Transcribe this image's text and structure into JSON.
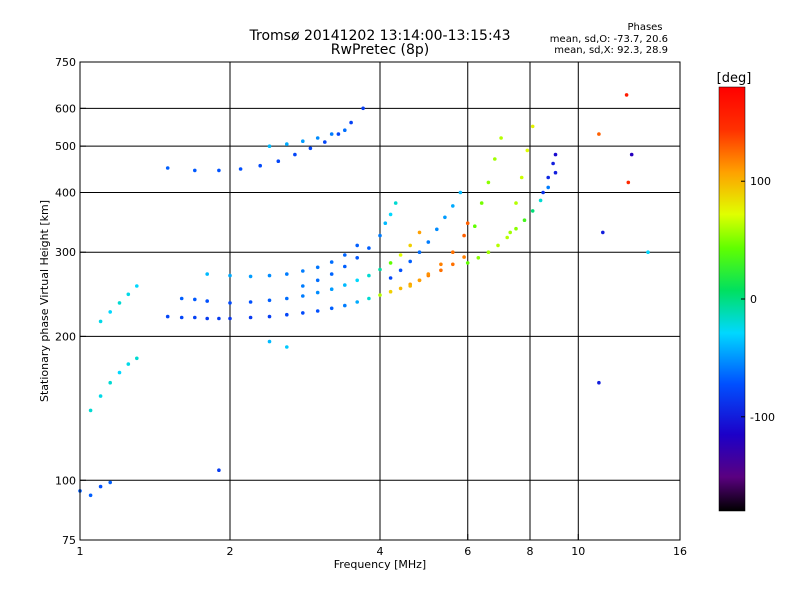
{
  "chart_data": {
    "type": "scatter",
    "title": "Tromsø 20141202 13:14:00-13:15:43",
    "subtitle": "RwPretec (8p)",
    "xlabel": "Frequency [MHz]",
    "ylabel": "Stationary phase Virtual Height [km]",
    "xscale": "log",
    "yscale": "log",
    "xlim": [
      1,
      16
    ],
    "ylim": [
      75,
      750
    ],
    "grid": true,
    "x_ticks": [
      1,
      2,
      4,
      6,
      8,
      10,
      16
    ],
    "y_ticks": [
      75,
      100,
      200,
      300,
      400,
      500,
      600,
      750
    ],
    "legend": {
      "heading": "Phases",
      "lines": [
        "mean, sd,O:  -73.7, 20.6",
        "mean, sd,X:   92.3, 28.9"
      ]
    },
    "colorbar": {
      "label": "[deg]",
      "range": [
        -180,
        180
      ],
      "ticks": [
        100,
        0,
        -100
      ]
    },
    "series": [
      {
        "x": [
          1.0,
          1.05,
          1.1,
          1.15
        ],
        "y": [
          95,
          93,
          97,
          99
        ],
        "phase": [
          -70,
          -70,
          -75,
          -70
        ]
      },
      {
        "x": [
          1.05,
          1.1,
          1.15,
          1.2,
          1.25,
          1.3,
          1.1,
          1.15,
          1.2,
          1.25,
          1.3
        ],
        "y": [
          140,
          150,
          160,
          168,
          175,
          180,
          215,
          225,
          235,
          245,
          255
        ],
        "phase": [
          -20,
          -25,
          -20,
          -30,
          -25,
          -20,
          -25,
          -30,
          -20,
          -25,
          -30
        ]
      },
      {
        "x": [
          1.5,
          1.6,
          1.7,
          1.8,
          1.9,
          2.0,
          2.2,
          2.4,
          2.6,
          2.8,
          3.0,
          3.2,
          3.4,
          3.6,
          3.8,
          4.0,
          4.2,
          4.4,
          4.6,
          4.8,
          5.0,
          5.3,
          5.6,
          5.9
        ],
        "y": [
          220,
          219,
          219,
          218,
          218,
          218,
          219,
          220,
          222,
          224,
          226,
          229,
          232,
          236,
          240,
          244,
          248,
          252,
          257,
          262,
          268,
          275,
          283,
          293
        ],
        "phase": [
          -80,
          -80,
          -82,
          -85,
          -85,
          -88,
          -86,
          -84,
          -80,
          -78,
          -75,
          -70,
          -60,
          -45,
          -20,
          60,
          90,
          100,
          110,
          115,
          120,
          125,
          125,
          120
        ]
      },
      {
        "x": [
          1.6,
          1.7,
          1.8,
          2.0,
          2.2,
          2.4,
          2.6,
          2.8,
          3.0,
          3.2,
          3.4,
          3.6,
          3.8,
          4.0,
          4.2,
          4.4,
          4.6,
          4.8
        ],
        "y": [
          240,
          239,
          237,
          235,
          236,
          238,
          240,
          243,
          247,
          251,
          256,
          262,
          268,
          276,
          285,
          296,
          310,
          330
        ],
        "phase": [
          -70,
          -72,
          -75,
          -78,
          -75,
          -70,
          -65,
          -60,
          -55,
          -50,
          -40,
          -30,
          -20,
          -10,
          40,
          70,
          90,
          110
        ]
      },
      {
        "x": [
          1.8,
          2.0,
          2.2,
          2.4,
          2.6,
          2.8,
          3.0,
          3.2,
          3.4,
          3.6
        ],
        "y": [
          270,
          268,
          267,
          268,
          270,
          274,
          279,
          286,
          296,
          310
        ],
        "phase": [
          -40,
          -45,
          -50,
          -55,
          -60,
          -60,
          -62,
          -65,
          -68,
          -70
        ]
      },
      {
        "x": [
          2.8,
          3.0,
          3.2,
          3.4,
          3.6,
          3.8,
          4.0,
          4.1,
          4.2,
          4.3
        ],
        "y": [
          255,
          262,
          270,
          280,
          292,
          306,
          325,
          345,
          360,
          380
        ],
        "phase": [
          -60,
          -65,
          -68,
          -70,
          -72,
          -70,
          -60,
          -40,
          -30,
          -20
        ]
      },
      {
        "x": [
          4.2,
          4.4,
          4.6,
          4.8,
          5.0,
          5.2,
          5.4,
          5.6,
          5.8
        ],
        "y": [
          265,
          275,
          287,
          300,
          315,
          335,
          355,
          375,
          400
        ],
        "phase": [
          -80,
          -75,
          -70,
          -65,
          -60,
          -55,
          -50,
          -45,
          -40
        ]
      },
      {
        "x": [
          4.6,
          4.8,
          5.0,
          5.3,
          5.6,
          5.9,
          6.0
        ],
        "y": [
          255,
          262,
          270,
          283,
          300,
          325,
          345
        ],
        "phase": [
          100,
          110,
          115,
          120,
          125,
          130,
          130
        ]
      },
      {
        "x": [
          6.0,
          6.3,
          6.6,
          6.9,
          7.2,
          7.5,
          7.8,
          8.1,
          8.4,
          8.7,
          9.0
        ],
        "y": [
          285,
          292,
          300,
          310,
          322,
          336,
          350,
          366,
          385,
          410,
          440
        ],
        "phase": [
          40,
          50,
          55,
          60,
          60,
          50,
          30,
          0,
          -20,
          -60,
          -100
        ]
      },
      {
        "x": [
          6.2,
          6.4,
          6.6,
          6.8,
          7.0
        ],
        "y": [
          340,
          380,
          420,
          470,
          520
        ],
        "phase": [
          40,
          45,
          50,
          55,
          60
        ]
      },
      {
        "x": [
          7.3,
          7.5,
          7.7,
          7.9,
          8.1
        ],
        "y": [
          330,
          380,
          430,
          490,
          550
        ],
        "phase": [
          55,
          60,
          65,
          70,
          75
        ]
      },
      {
        "x": [
          8.5,
          8.7,
          8.9,
          9.0
        ],
        "y": [
          400,
          430,
          460,
          480
        ],
        "phase": [
          -90,
          -95,
          -100,
          -110
        ]
      },
      {
        "x": [
          1.5,
          1.7,
          1.9,
          2.1,
          2.3,
          2.5,
          2.7,
          2.9,
          3.1,
          3.3,
          3.5,
          3.7
        ],
        "y": [
          450,
          445,
          445,
          448,
          455,
          465,
          480,
          495,
          510,
          530,
          560,
          600
        ],
        "phase": [
          -70,
          -72,
          -74,
          -76,
          -78,
          -80,
          -80,
          -80,
          -80,
          -80,
          -82,
          -85
        ]
      },
      {
        "x": [
          2.4,
          2.6,
          2.8,
          3.0,
          3.2,
          3.4
        ],
        "y": [
          500,
          505,
          512,
          520,
          530,
          540
        ],
        "phase": [
          -40,
          -45,
          -50,
          -55,
          -60,
          -65
        ]
      },
      {
        "x": [
          1.9,
          2.4,
          2.6,
          11.0,
          11.2,
          12.5,
          12.8,
          12.6,
          11.0,
          13.8
        ],
        "y": [
          105,
          195,
          190,
          530,
          330,
          640,
          480,
          420,
          160,
          300
        ],
        "phase": [
          -85,
          -40,
          -35,
          130,
          -100,
          160,
          -120,
          150,
          -100,
          -30
        ]
      }
    ]
  },
  "icons": {
    "colorbar": "phase-colorbar"
  }
}
